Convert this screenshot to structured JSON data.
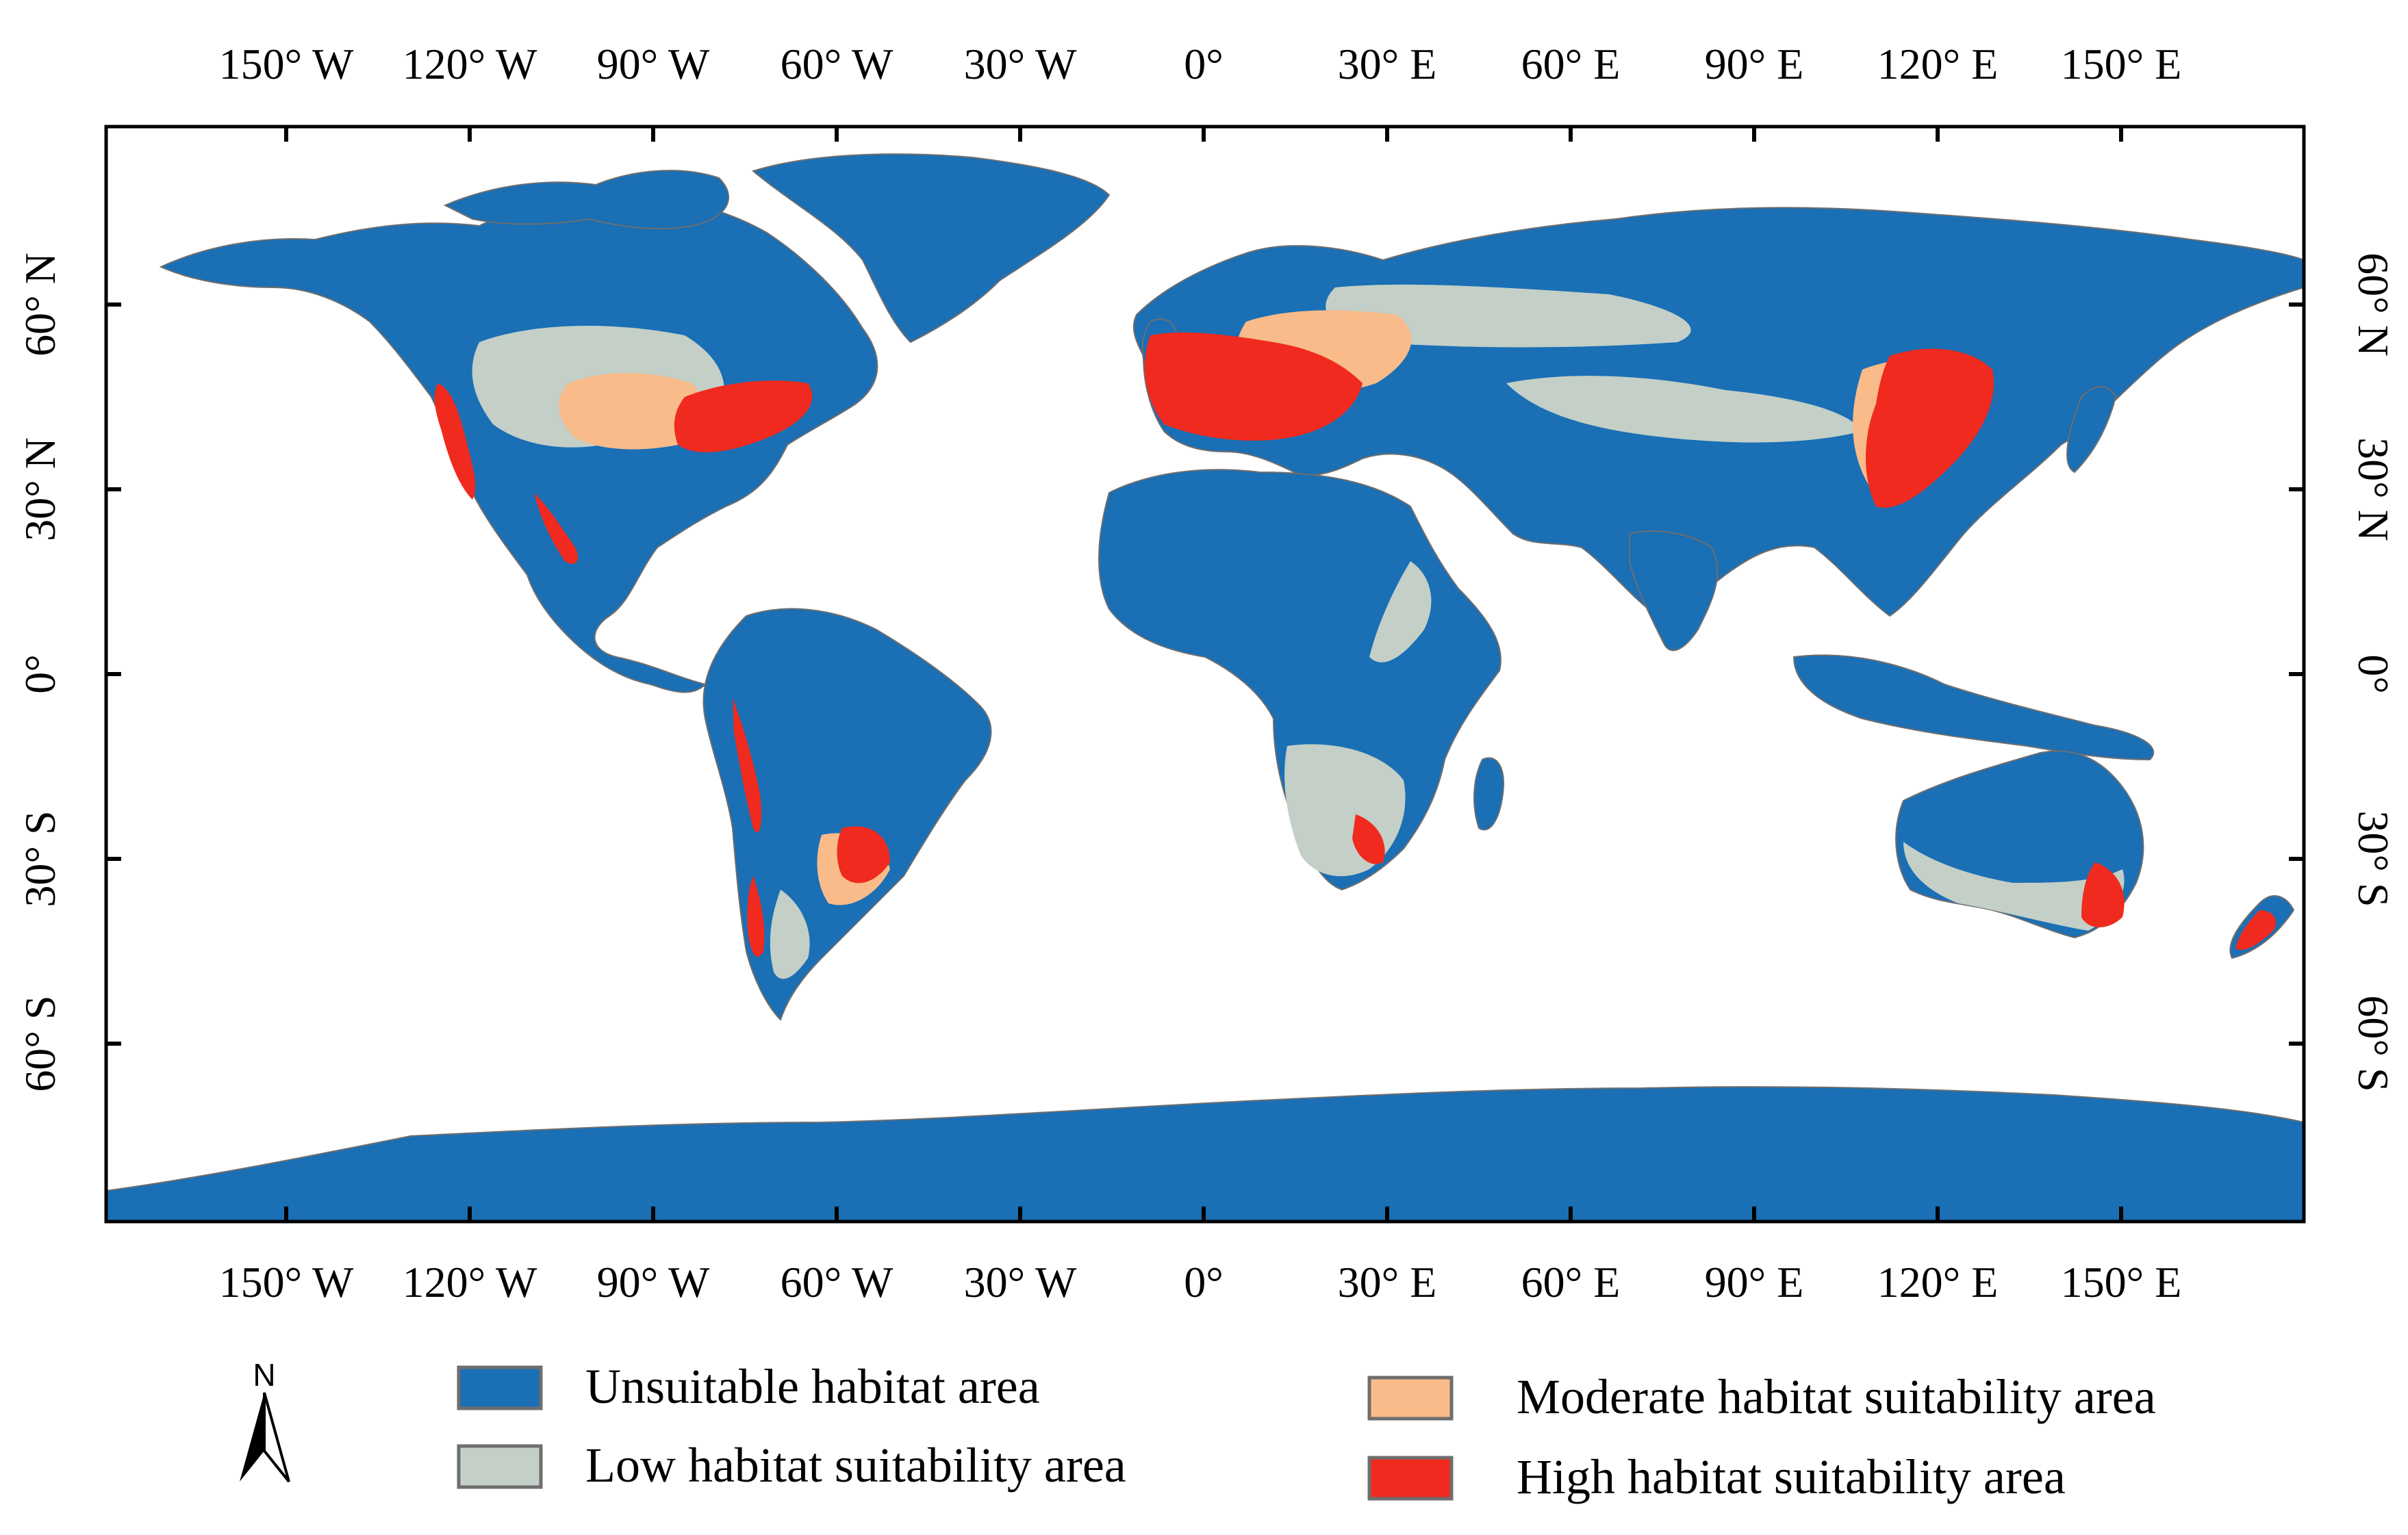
{
  "map": {
    "colors": {
      "unsuitable": "#1a6fb5",
      "low": "#c3cfc7",
      "moderate": "#f9bb8a",
      "high": "#f02a1e",
      "ocean": "#ffffff",
      "coast": "#6e6e6e"
    },
    "longitude_ticks": [
      {
        "value": -150,
        "label": "150° W"
      },
      {
        "value": -120,
        "label": "120° W"
      },
      {
        "value": -90,
        "label": "90° W"
      },
      {
        "value": -60,
        "label": "60° W"
      },
      {
        "value": -30,
        "label": "30° W"
      },
      {
        "value": 0,
        "label": "0°"
      },
      {
        "value": 30,
        "label": "30° E"
      },
      {
        "value": 60,
        "label": "60° E"
      },
      {
        "value": 90,
        "label": "90° E"
      },
      {
        "value": 120,
        "label": "120° E"
      },
      {
        "value": 150,
        "label": "150° E"
      }
    ],
    "latitude_ticks": [
      {
        "value": 60,
        "label": "60° N"
      },
      {
        "value": 30,
        "label": "30° N"
      },
      {
        "value": 0,
        "label": "0°"
      },
      {
        "value": -30,
        "label": "30° S"
      },
      {
        "value": -60,
        "label": "60° S"
      }
    ],
    "north_arrow": {
      "label": "N"
    },
    "legend": [
      {
        "key": "unsuitable",
        "label": "Unsuitable habitat area"
      },
      {
        "key": "low",
        "label": "Low habitat suitability area"
      },
      {
        "key": "moderate",
        "label": "Moderate habitat suitability area"
      },
      {
        "key": "high",
        "label": "High habitat suitability area"
      }
    ]
  }
}
